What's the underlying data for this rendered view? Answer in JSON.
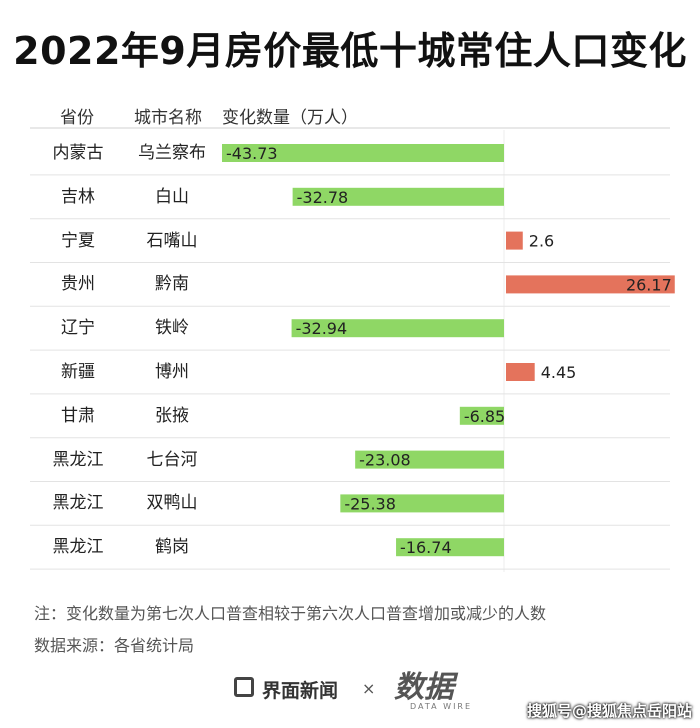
{
  "title": "2022年9月房价最低十城常住人口变化",
  "headers": {
    "province": "省份",
    "city": "城市名称",
    "change": "变化数量（万人）"
  },
  "chart_data": {
    "type": "bar",
    "orientation": "horizontal",
    "unit": "万人",
    "rows": [
      {
        "province": "内蒙古",
        "city": "乌兰察布",
        "value": -43.73,
        "label": "-43.73"
      },
      {
        "province": "吉林",
        "city": "白山",
        "value": -32.78,
        "label": "-32.78"
      },
      {
        "province": "宁夏",
        "city": "石嘴山",
        "value": 2.6,
        "label": "2.6"
      },
      {
        "province": "贵州",
        "city": "黔南",
        "value": 26.17,
        "label": "26.17"
      },
      {
        "province": "辽宁",
        "city": "铁岭",
        "value": -32.94,
        "label": "-32.94"
      },
      {
        "province": "新疆",
        "city": "博州",
        "value": 4.45,
        "label": "4.45"
      },
      {
        "province": "甘肃",
        "city": "张掖",
        "value": -6.85,
        "label": "-6.85"
      },
      {
        "province": "黑龙江",
        "city": "七台河",
        "value": -23.08,
        "label": "-23.08"
      },
      {
        "province": "黑龙江",
        "city": "双鸭山",
        "value": -25.38,
        "label": "-25.38"
      },
      {
        "province": "黑龙江",
        "city": "鹤岗",
        "value": -16.74,
        "label": "-16.74"
      }
    ],
    "colors": {
      "negative": "#8fd765",
      "positive": "#e4735c"
    }
  },
  "note": "注：变化数量为第七次人口普查相较于第六次人口普查增加或减少的人数",
  "source": "数据来源：各省统计局",
  "footer": {
    "brand": "界面新闻",
    "times": "×",
    "mark": "数据",
    "mark_sub": "DATA WIRE",
    "credit": "搜狐号@搜狐焦点岳阳站"
  }
}
